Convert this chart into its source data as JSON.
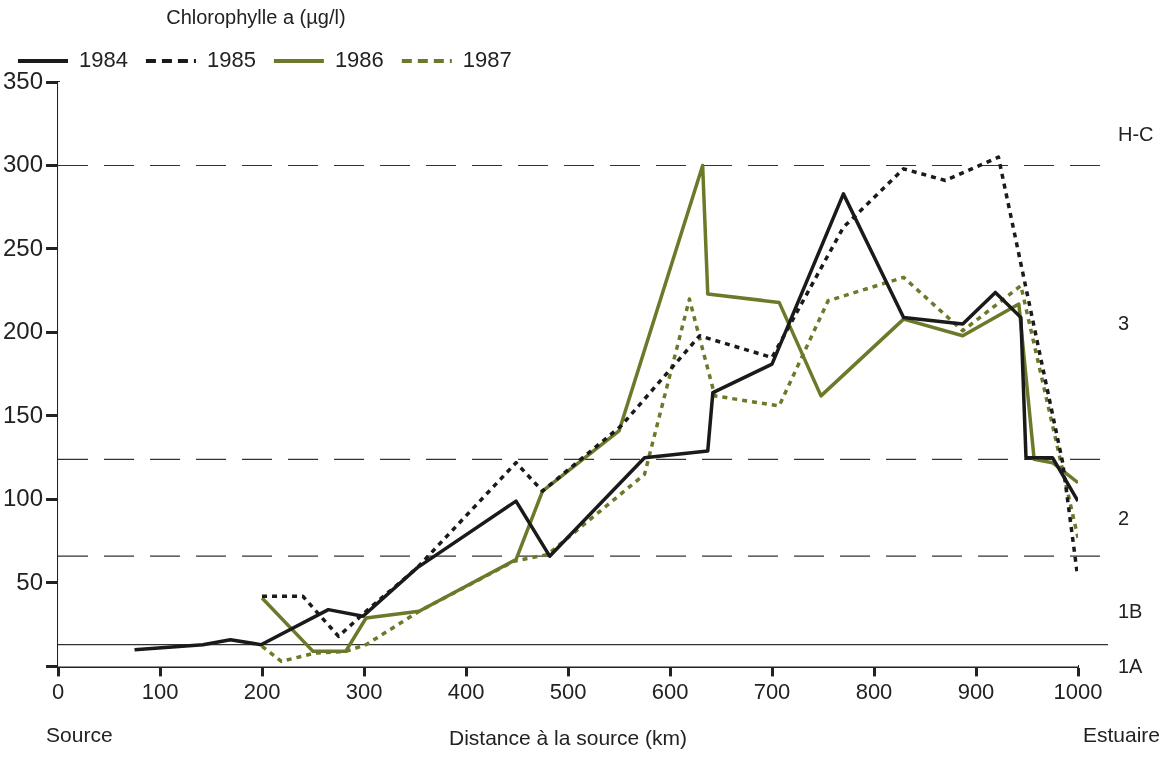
{
  "chart_data": {
    "type": "line",
    "xlabel": "Distance à la source (km)",
    "legend_title": "Chlorophylle a (µg/l)",
    "legend": "top left",
    "xlim": [
      0,
      1000
    ],
    "xticks": [
      0,
      100,
      200,
      300,
      400,
      500,
      600,
      700,
      800,
      900,
      1000
    ],
    "ylim": [
      0,
      350
    ],
    "yticks": [
      {
        "value": 0,
        "label": null
      },
      50,
      100,
      150,
      200,
      250,
      300,
      350
    ],
    "grid": false,
    "marker": "none",
    "series": [
      {
        "name": "1984",
        "color": "#1a1a1a",
        "line_style": "solid",
        "x": [
          75,
          142,
          169,
          199,
          265,
          299,
          352,
          449,
          482,
          575,
          637,
          642,
          700,
          770,
          829,
          887,
          919,
          944,
          949,
          975,
          1000
        ],
        "values": [
          10,
          13,
          16,
          13,
          34,
          30,
          59,
          99,
          66,
          125,
          129,
          164,
          181,
          283,
          209,
          205,
          224,
          209,
          125,
          125,
          99
        ]
      },
      {
        "name": "1985",
        "color": "#1a1a1a",
        "line_style": "dotted",
        "x": [
          200,
          240,
          275,
          302,
          352,
          449,
          475,
          552,
          629,
          700,
          770,
          829,
          870,
          922,
          985,
          999
        ],
        "values": [
          42,
          42,
          18,
          33,
          59,
          122,
          105,
          144,
          198,
          185,
          263,
          298,
          291,
          305,
          122,
          57
        ]
      },
      {
        "name": "1986",
        "color": "#6b7a2a",
        "line_style": "solid",
        "x": [
          200,
          250,
          282,
          302,
          354,
          449,
          475,
          550,
          632,
          637,
          707,
          748,
          829,
          887,
          942,
          957,
          975,
          1000
        ],
        "values": [
          41,
          9,
          9,
          29,
          33,
          64,
          105,
          141,
          300,
          223,
          218,
          162,
          208,
          198,
          217,
          124,
          122,
          110
        ]
      },
      {
        "name": "1987",
        "color": "#6b7a2a",
        "line_style": "dotted",
        "x": [
          200,
          219,
          252,
          282,
          302,
          354,
          447,
          480,
          575,
          619,
          644,
          707,
          755,
          829,
          887,
          944,
          1000
        ],
        "values": [
          12,
          3,
          8,
          9,
          13,
          33,
          63,
          67,
          115,
          220,
          162,
          156,
          219,
          233,
          201,
          228,
          77
        ]
      }
    ],
    "ref_lines": [
      {
        "axis": "y",
        "value": 300,
        "line_style": "dashed"
      },
      {
        "axis": "y",
        "value": 124,
        "line_style": "dashed"
      },
      {
        "axis": "y",
        "value": 66,
        "line_style": "dashed"
      },
      {
        "axis": "y",
        "value": 13,
        "line_style": "solid"
      }
    ],
    "bands": [
      {
        "axis": "y",
        "from": 0,
        "to": 13,
        "label": "1A",
        "color": "#ffffff"
      },
      {
        "axis": "y",
        "from": 13,
        "to": 66,
        "label": "1B",
        "color": "#ffffff"
      },
      {
        "axis": "y",
        "from": 66,
        "to": 124,
        "label": "2",
        "color": "#ffffff"
      },
      {
        "axis": "y",
        "from": 124,
        "to": 300,
        "label": "3",
        "color": "#ffffff"
      },
      {
        "axis": "y",
        "from": 300,
        "to": 350,
        "label": "H-C",
        "color": "#ffffff"
      }
    ],
    "annotations": [
      "Source",
      "Estuaire"
    ]
  }
}
